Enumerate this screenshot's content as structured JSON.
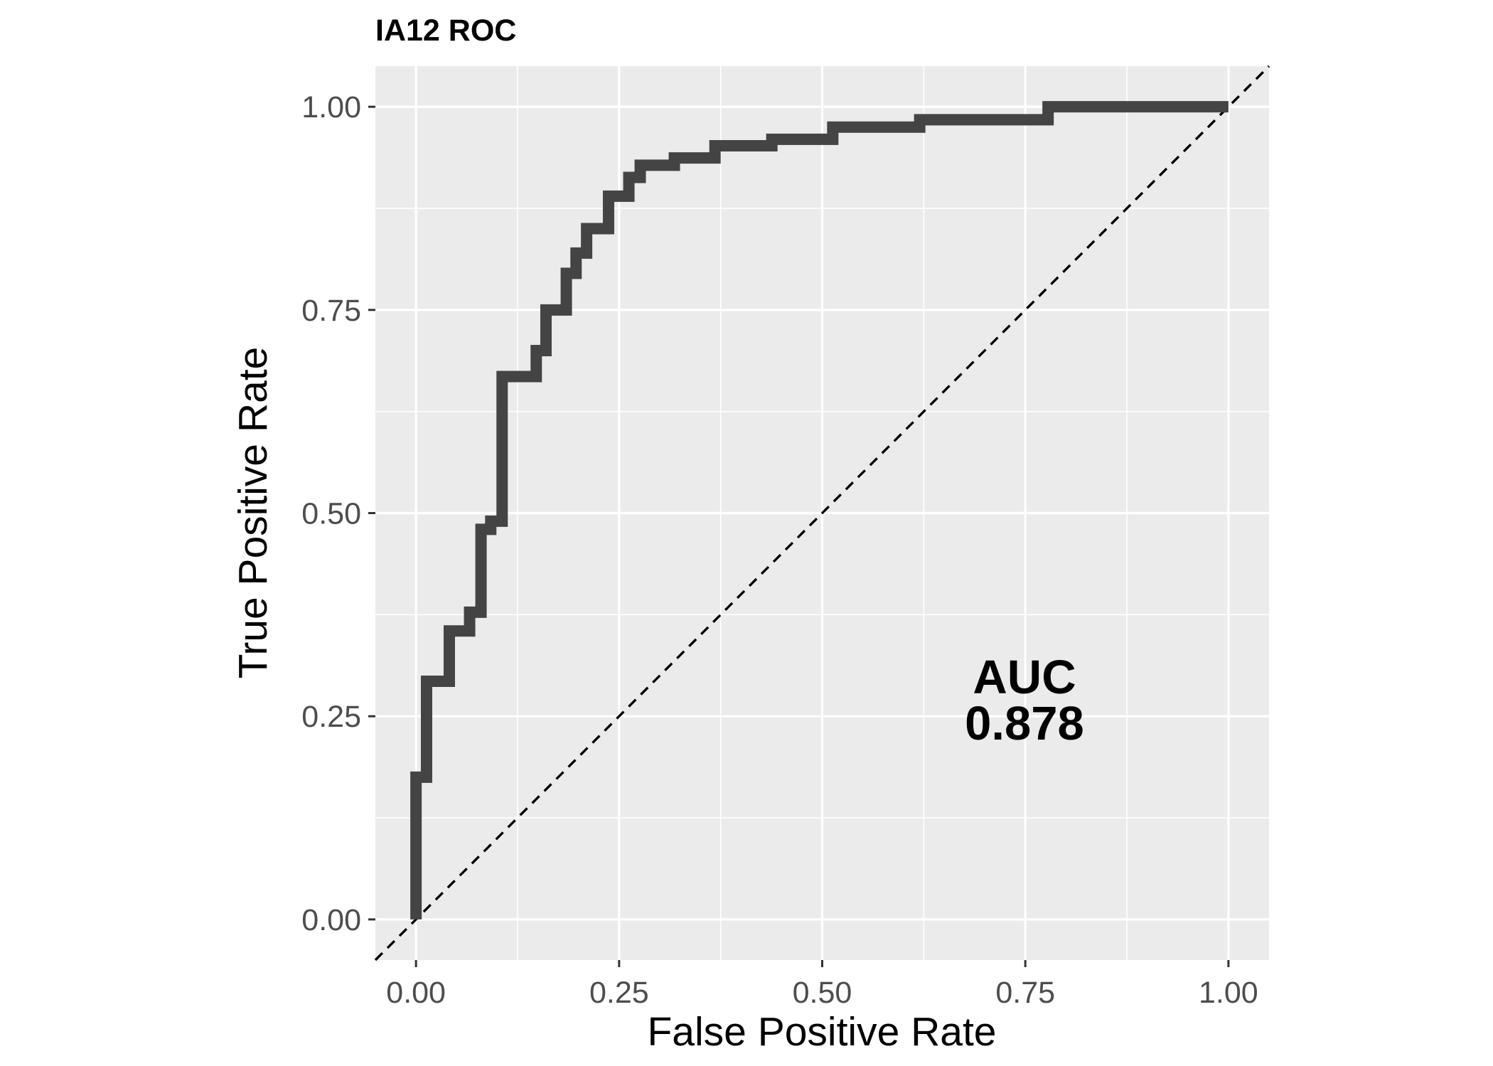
{
  "chart_data": {
    "type": "line",
    "title": "IA12 ROC",
    "xlabel": "False Positive Rate",
    "ylabel": "True Positive Rate",
    "xlim": [
      -0.05,
      1.05
    ],
    "ylim": [
      -0.05,
      1.05
    ],
    "x_ticks": [
      "0.00",
      "0.25",
      "0.50",
      "0.75",
      "1.00"
    ],
    "y_ticks": [
      "0.00",
      "0.25",
      "0.50",
      "0.75",
      "1.00"
    ],
    "grid": true,
    "background_color": "#ebebeb",
    "series": [
      {
        "color": "#444444",
        "points": [
          [
            0.0,
            0.0
          ],
          [
            0.0,
            0.175
          ],
          [
            0.013,
            0.175
          ],
          [
            0.013,
            0.293
          ],
          [
            0.041,
            0.293
          ],
          [
            0.041,
            0.355
          ],
          [
            0.066,
            0.355
          ],
          [
            0.066,
            0.378
          ],
          [
            0.08,
            0.378
          ],
          [
            0.08,
            0.48
          ],
          [
            0.092,
            0.48
          ],
          [
            0.092,
            0.49
          ],
          [
            0.106,
            0.49
          ],
          [
            0.106,
            0.668
          ],
          [
            0.148,
            0.668
          ],
          [
            0.148,
            0.7
          ],
          [
            0.16,
            0.7
          ],
          [
            0.16,
            0.75
          ],
          [
            0.185,
            0.75
          ],
          [
            0.185,
            0.795
          ],
          [
            0.197,
            0.795
          ],
          [
            0.197,
            0.82
          ],
          [
            0.21,
            0.82
          ],
          [
            0.21,
            0.85
          ],
          [
            0.237,
            0.85
          ],
          [
            0.237,
            0.89
          ],
          [
            0.262,
            0.89
          ],
          [
            0.262,
            0.913
          ],
          [
            0.276,
            0.913
          ],
          [
            0.276,
            0.928
          ],
          [
            0.318,
            0.928
          ],
          [
            0.318,
            0.937
          ],
          [
            0.368,
            0.937
          ],
          [
            0.368,
            0.952
          ],
          [
            0.438,
            0.952
          ],
          [
            0.438,
            0.96
          ],
          [
            0.513,
            0.96
          ],
          [
            0.513,
            0.975
          ],
          [
            0.62,
            0.975
          ],
          [
            0.62,
            0.984
          ],
          [
            0.778,
            0.984
          ],
          [
            0.778,
            1.0
          ],
          [
            1.0,
            1.0
          ]
        ]
      },
      {
        "color": "#000000",
        "dashed": true,
        "points": [
          [
            -0.05,
            -0.05
          ],
          [
            1.05,
            1.05
          ]
        ]
      }
    ],
    "annotations": [
      "AUC",
      "0.878"
    ]
  }
}
